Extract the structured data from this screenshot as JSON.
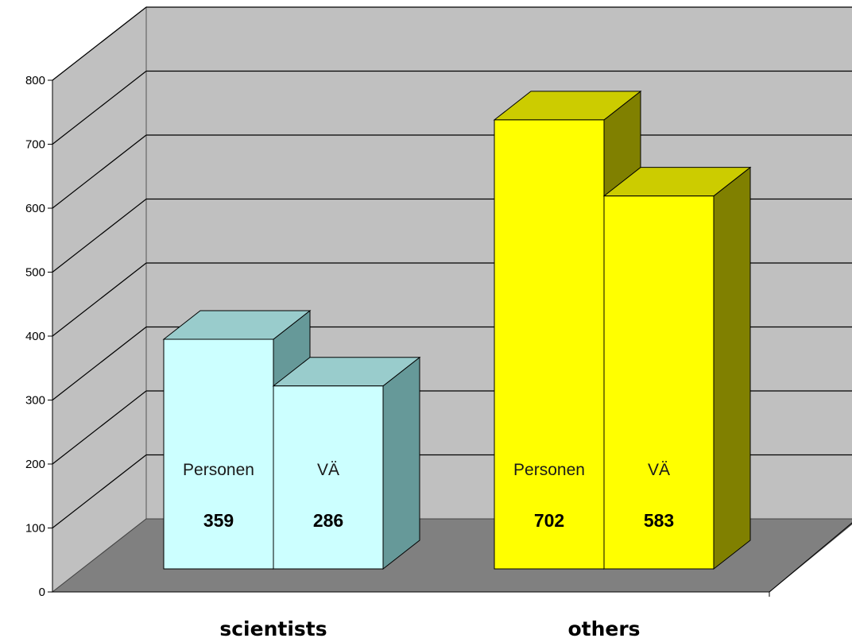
{
  "chart_data": {
    "type": "bar",
    "style": "3d-clustered-column",
    "categories": [
      "scientists",
      "others"
    ],
    "series": [
      {
        "values": [
          359,
          702
        ],
        "label": "Personen"
      },
      {
        "values": [
          286,
          583
        ],
        "label": "VÄ"
      }
    ],
    "colors": {
      "scientists": {
        "front": "#ccffff",
        "top": "#99cccc",
        "side": "#669999"
      },
      "others": {
        "front": "#ffff00",
        "top": "#cccc00",
        "side": "#808000"
      },
      "wall": "#c0c0c0",
      "floor": "#808080"
    },
    "yticks": [
      0,
      100,
      200,
      300,
      400,
      500,
      600,
      700,
      800
    ],
    "ylim": [
      0,
      800
    ],
    "grid": true,
    "legend": "none"
  }
}
